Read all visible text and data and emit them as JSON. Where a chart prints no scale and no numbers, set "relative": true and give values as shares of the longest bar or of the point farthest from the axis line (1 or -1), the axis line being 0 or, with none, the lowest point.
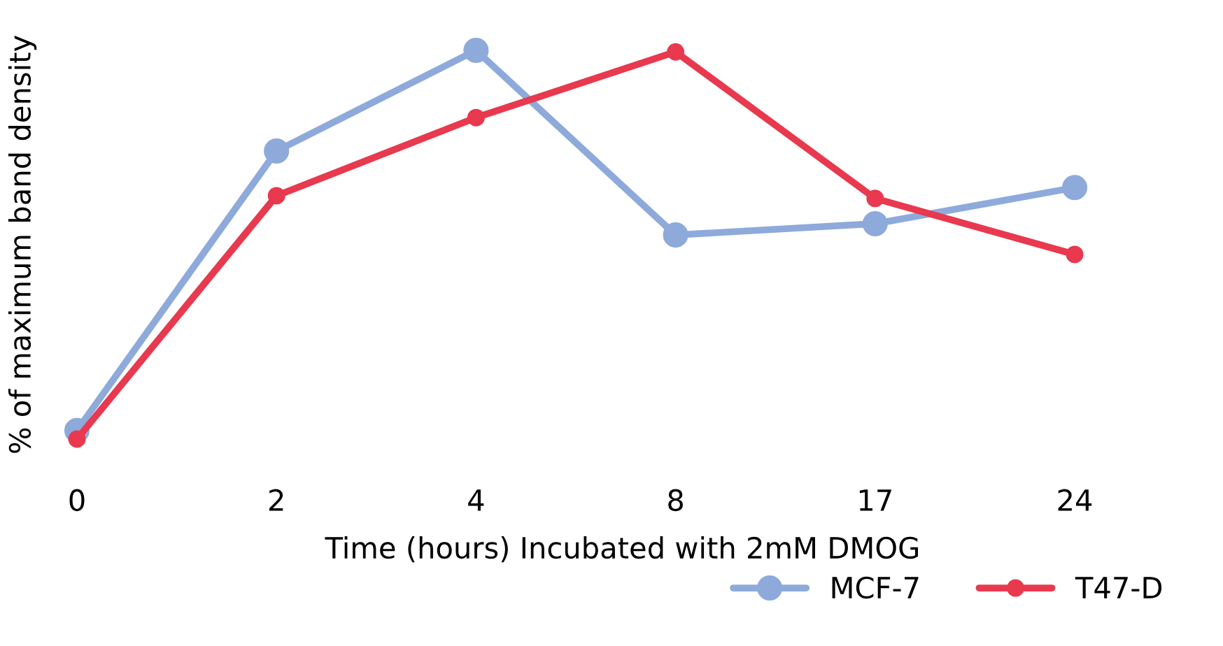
{
  "chart_data": {
    "type": "line",
    "relative": true,
    "xlabel": "Time (hours) Incubated with 2mM DMOG",
    "ylabel": "% of maximum band density",
    "categories": [
      "0",
      "2",
      "4",
      "8",
      "17",
      "24"
    ],
    "series": [
      {
        "name": "MCF-7",
        "color": "#8eaadb",
        "values": [
          0.022,
          0.741,
          1,
          0.525,
          0.554,
          0.647
        ]
      },
      {
        "name": "T47-D",
        "color": "#e8394f",
        "values": [
          0,
          0.626,
          0.827,
          0.996,
          0.619,
          0.475
        ]
      }
    ],
    "marker": "circle",
    "line_style": "solid",
    "legend": "bottom right",
    "grid": false
  }
}
